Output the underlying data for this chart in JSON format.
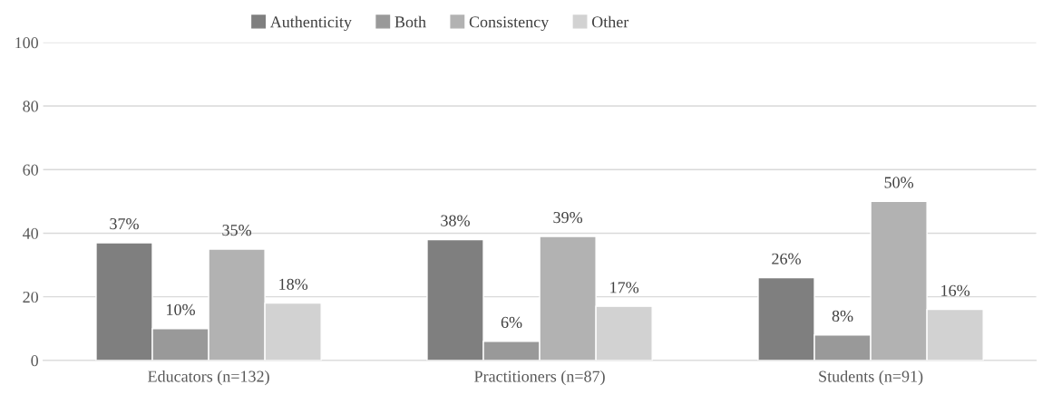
{
  "chart_data": {
    "type": "bar",
    "categories": [
      "Educators (n=132)",
      "Practitioners (n=87)",
      "Students (n=91)"
    ],
    "series": [
      {
        "name": "Authenticity",
        "color": "#7f7f7f",
        "values": [
          37,
          38,
          26
        ],
        "value_labels": [
          "37%",
          "38%",
          "26%"
        ]
      },
      {
        "name": "Both",
        "color": "#999999",
        "values": [
          10,
          6,
          8
        ],
        "value_labels": [
          "10%",
          "6%",
          "8%"
        ]
      },
      {
        "name": "Consistency",
        "color": "#b2b2b2",
        "values": [
          35,
          39,
          50
        ],
        "value_labels": [
          "35%",
          "39%",
          "50%"
        ]
      },
      {
        "name": "Other",
        "color": "#d2d2d2",
        "values": [
          18,
          17,
          16
        ],
        "value_labels": [
          "18%",
          "17%",
          "16%"
        ]
      }
    ],
    "ylim": [
      0,
      100
    ],
    "yticks": [
      0,
      20,
      40,
      60,
      80,
      100
    ],
    "grid": "y",
    "legend": "top"
  }
}
